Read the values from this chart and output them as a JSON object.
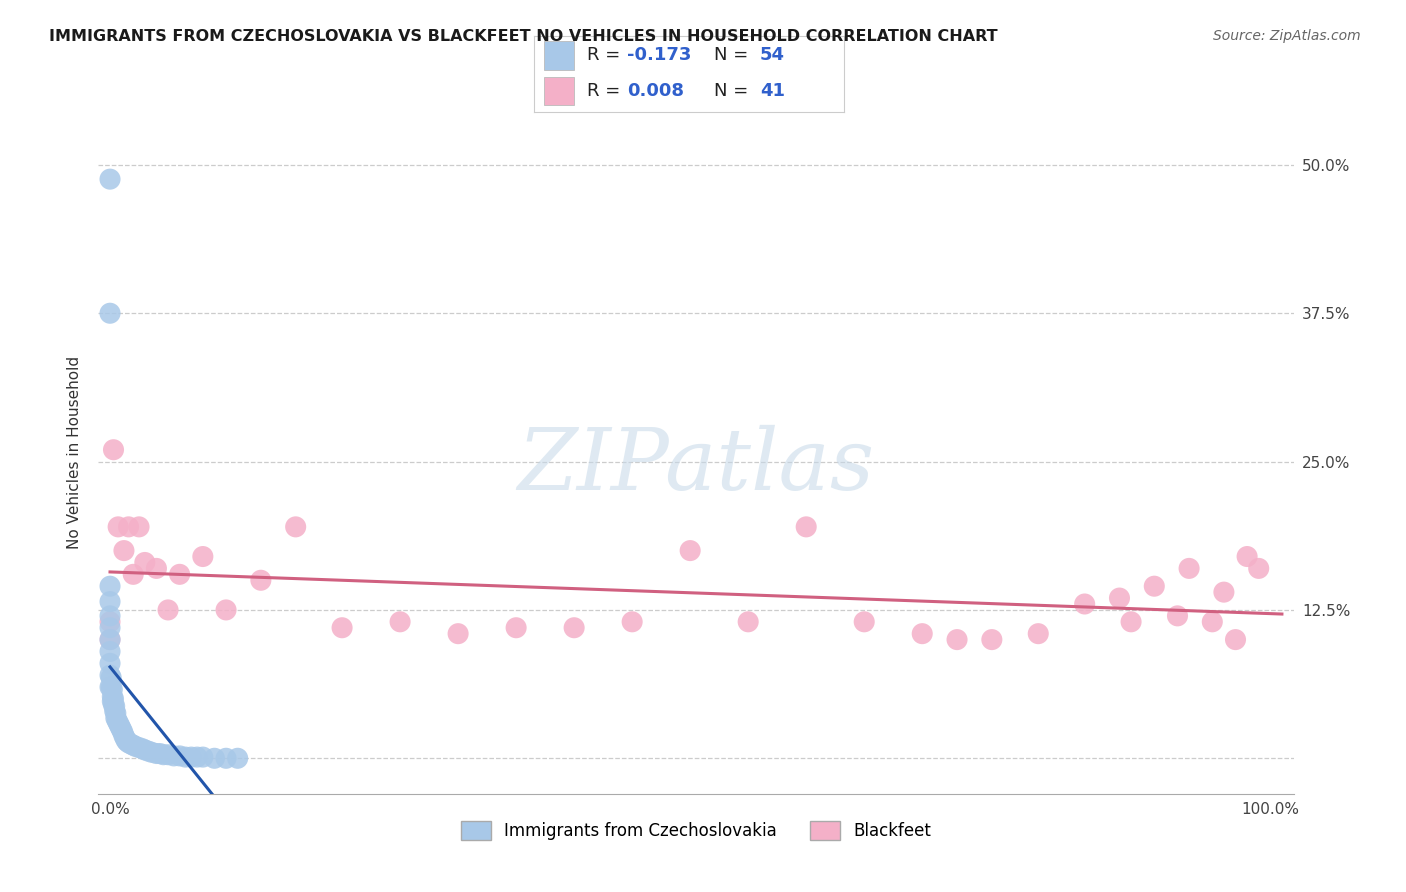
{
  "title": "IMMIGRANTS FROM CZECHOSLOVAKIA VS BLACKFEET NO VEHICLES IN HOUSEHOLD CORRELATION CHART",
  "source": "Source: ZipAtlas.com",
  "ylabel": "No Vehicles in Household",
  "xlim": [
    -0.01,
    1.02
  ],
  "ylim": [
    -0.03,
    0.545
  ],
  "xticks": [
    0.0,
    0.25,
    0.5,
    0.75,
    1.0
  ],
  "xticklabels": [
    "0.0%",
    "",
    "",
    "",
    "100.0%"
  ],
  "yticks": [
    0.0,
    0.125,
    0.25,
    0.375,
    0.5
  ],
  "yticklabels": [
    "",
    "12.5%",
    "25.0%",
    "37.5%",
    "50.0%"
  ],
  "series1_name": "Immigrants from Czechoslovakia",
  "series1_R": "-0.173",
  "series1_N": "54",
  "series1_scatter_color": "#a8c8e8",
  "series1_line_color": "#2255aa",
  "series2_name": "Blackfeet",
  "series2_R": "0.008",
  "series2_N": "41",
  "series2_scatter_color": "#f4b0c8",
  "series2_line_color": "#d06080",
  "background_color": "#ffffff",
  "watermark_text": "ZIPatlas",
  "grid_color": "#cccccc",
  "legend_text_color": "#3060cc",
  "legend_label_color": "#222222",
  "series1_x": [
    0.0,
    0.0,
    0.0,
    0.0,
    0.0,
    0.0,
    0.0,
    0.0,
    0.0,
    0.0,
    0.0,
    0.001,
    0.001,
    0.002,
    0.002,
    0.002,
    0.003,
    0.003,
    0.004,
    0.004,
    0.005,
    0.005,
    0.006,
    0.007,
    0.008,
    0.009,
    0.01,
    0.011,
    0.012,
    0.013,
    0.014,
    0.015,
    0.016,
    0.018,
    0.02,
    0.022,
    0.025,
    0.028,
    0.03,
    0.033,
    0.036,
    0.04,
    0.043,
    0.046,
    0.05,
    0.055,
    0.06,
    0.065,
    0.07,
    0.075,
    0.08,
    0.09,
    0.1,
    0.11
  ],
  "series1_y": [
    0.488,
    0.375,
    0.145,
    0.132,
    0.12,
    0.11,
    0.1,
    0.09,
    0.08,
    0.07,
    0.06,
    0.068,
    0.06,
    0.058,
    0.052,
    0.048,
    0.05,
    0.045,
    0.044,
    0.04,
    0.038,
    0.034,
    0.032,
    0.03,
    0.028,
    0.026,
    0.024,
    0.022,
    0.019,
    0.017,
    0.015,
    0.014,
    0.013,
    0.012,
    0.011,
    0.01,
    0.009,
    0.008,
    0.007,
    0.006,
    0.005,
    0.004,
    0.004,
    0.003,
    0.003,
    0.002,
    0.002,
    0.001,
    0.001,
    0.001,
    0.001,
    0.0,
    0.0,
    0.0
  ],
  "series2_x": [
    0.0,
    0.0,
    0.003,
    0.007,
    0.012,
    0.016,
    0.02,
    0.025,
    0.03,
    0.04,
    0.05,
    0.06,
    0.08,
    0.1,
    0.13,
    0.16,
    0.2,
    0.25,
    0.3,
    0.35,
    0.4,
    0.45,
    0.5,
    0.55,
    0.6,
    0.65,
    0.7,
    0.73,
    0.76,
    0.8,
    0.84,
    0.87,
    0.88,
    0.9,
    0.92,
    0.93,
    0.95,
    0.96,
    0.97,
    0.98,
    0.99
  ],
  "series2_y": [
    0.115,
    0.1,
    0.26,
    0.195,
    0.175,
    0.195,
    0.155,
    0.195,
    0.165,
    0.16,
    0.125,
    0.155,
    0.17,
    0.125,
    0.15,
    0.195,
    0.11,
    0.115,
    0.105,
    0.11,
    0.11,
    0.115,
    0.175,
    0.115,
    0.195,
    0.115,
    0.105,
    0.1,
    0.1,
    0.105,
    0.13,
    0.135,
    0.115,
    0.145,
    0.12,
    0.16,
    0.115,
    0.14,
    0.1,
    0.17,
    0.16
  ]
}
